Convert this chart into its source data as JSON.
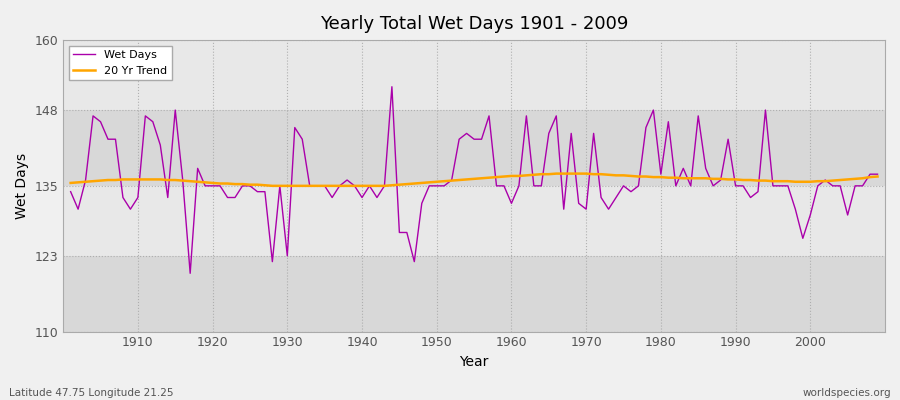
{
  "title": "Yearly Total Wet Days 1901 - 2009",
  "xlabel": "Year",
  "ylabel": "Wet Days",
  "lat_lon_label": "Latitude 47.75 Longitude 21.25",
  "source_label": "worldspecies.org",
  "year_start": 1901,
  "year_end": 2009,
  "wet_days_color": "#AA00AA",
  "trend_color": "#FFA500",
  "background_color": "#F0F0F0",
  "plot_bg_light": "#E8E8E8",
  "plot_bg_dark": "#D8D8D8",
  "ylim": [
    110,
    160
  ],
  "yticks": [
    110,
    123,
    135,
    148,
    160
  ],
  "wet_days": [
    134,
    131,
    136,
    147,
    146,
    143,
    143,
    133,
    131,
    133,
    147,
    146,
    142,
    133,
    148,
    136,
    120,
    138,
    135,
    135,
    135,
    133,
    133,
    135,
    135,
    134,
    134,
    122,
    135,
    123,
    145,
    143,
    135,
    135,
    135,
    133,
    135,
    136,
    135,
    133,
    135,
    133,
    135,
    152,
    127,
    127,
    122,
    132,
    135,
    135,
    135,
    136,
    143,
    144,
    143,
    143,
    147,
    135,
    135,
    132,
    135,
    147,
    135,
    135,
    144,
    147,
    131,
    144,
    132,
    131,
    144,
    133,
    131,
    133,
    135,
    134,
    135,
    145,
    148,
    137,
    146,
    135,
    138,
    135,
    147,
    138,
    135,
    136,
    143,
    135,
    135,
    133,
    134,
    148,
    135,
    135,
    135,
    131,
    126,
    130,
    135,
    136,
    135,
    135,
    130,
    135,
    135,
    137,
    137
  ],
  "trend": [
    135.5,
    135.6,
    135.7,
    135.8,
    135.9,
    136.0,
    136.0,
    136.1,
    136.1,
    136.1,
    136.1,
    136.1,
    136.1,
    136.0,
    136.0,
    135.9,
    135.8,
    135.7,
    135.6,
    135.5,
    135.4,
    135.4,
    135.3,
    135.3,
    135.2,
    135.2,
    135.1,
    135.0,
    135.0,
    135.0,
    135.0,
    135.0,
    135.0,
    135.0,
    135.0,
    135.0,
    135.0,
    135.0,
    135.0,
    135.0,
    135.0,
    135.0,
    135.0,
    135.1,
    135.2,
    135.3,
    135.4,
    135.5,
    135.6,
    135.7,
    135.8,
    135.9,
    136.0,
    136.1,
    136.2,
    136.3,
    136.4,
    136.5,
    136.6,
    136.7,
    136.7,
    136.8,
    136.9,
    137.0,
    137.0,
    137.1,
    137.1,
    137.1,
    137.1,
    137.1,
    137.0,
    137.0,
    136.9,
    136.8,
    136.8,
    136.7,
    136.6,
    136.6,
    136.5,
    136.5,
    136.4,
    136.4,
    136.3,
    136.3,
    136.3,
    136.3,
    136.2,
    136.2,
    136.1,
    136.1,
    136.0,
    136.0,
    135.9,
    135.9,
    135.8,
    135.8,
    135.8,
    135.7,
    135.7,
    135.7,
    135.8,
    135.8,
    135.9,
    136.0,
    136.1,
    136.2,
    136.3,
    136.5,
    136.6
  ]
}
